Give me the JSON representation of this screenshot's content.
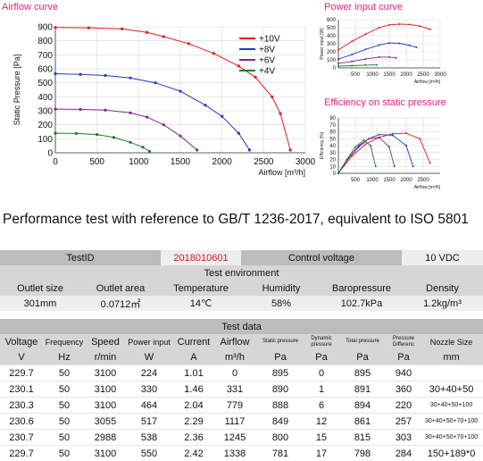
{
  "chart_data": [
    {
      "type": "line",
      "title": "Airflow curve",
      "xlabel": "Airflow [m³/h]",
      "ylabel": "Static Pressure [Pa]",
      "xlim": [
        0,
        3000
      ],
      "ylim": [
        0,
        900
      ],
      "xticks": [
        0,
        500,
        1000,
        1500,
        2000,
        2500,
        3000
      ],
      "yticks": [
        0,
        100,
        200,
        300,
        400,
        500,
        600,
        700,
        800,
        900
      ],
      "legend_position": "top-right",
      "series": [
        {
          "name": "+10V",
          "color": "#e8191f",
          "x": [
            0,
            400,
            800,
            1100,
            1300,
            1600,
            1900,
            2200,
            2400,
            2600,
            2700,
            2820
          ],
          "y": [
            895,
            893,
            885,
            860,
            830,
            780,
            710,
            620,
            540,
            400,
            280,
            20
          ]
        },
        {
          "name": "+8V",
          "color": "#2437c8",
          "x": [
            0,
            300,
            600,
            900,
            1200,
            1500,
            1800,
            2000,
            2200,
            2330
          ],
          "y": [
            565,
            560,
            552,
            535,
            500,
            440,
            340,
            260,
            140,
            20
          ]
        },
        {
          "name": "+6V",
          "color": "#7d2a88",
          "x": [
            0,
            300,
            600,
            900,
            1100,
            1300,
            1500,
            1700
          ],
          "y": [
            312,
            310,
            305,
            285,
            255,
            200,
            120,
            20
          ]
        },
        {
          "name": "+4V",
          "color": "#1d7a2a",
          "x": [
            0,
            250,
            500,
            700,
            900,
            1050,
            1130
          ],
          "y": [
            140,
            138,
            130,
            110,
            75,
            40,
            10
          ]
        }
      ]
    },
    {
      "type": "line",
      "title": "Power input curve",
      "xlabel": "Airflow [m³/h]",
      "ylabel": "Power input [W]",
      "xlim": [
        0,
        3000
      ],
      "ylim": [
        0,
        600
      ],
      "xticks": [
        500,
        1000,
        1500,
        2000,
        2500,
        3000
      ],
      "yticks": [
        0,
        100,
        200,
        300,
        400,
        500,
        600
      ],
      "series": [
        {
          "name": "+10V",
          "color": "#e8191f",
          "x": [
            0,
            400,
            800,
            1200,
            1500,
            1800,
            2100,
            2400,
            2700
          ],
          "y": [
            225,
            330,
            420,
            500,
            535,
            545,
            540,
            520,
            480
          ]
        },
        {
          "name": "+8V",
          "color": "#2437c8",
          "x": [
            0,
            400,
            800,
            1200,
            1500,
            1800,
            2100,
            2300
          ],
          "y": [
            110,
            165,
            230,
            285,
            310,
            305,
            280,
            255
          ]
        },
        {
          "name": "+6V",
          "color": "#7d2a88",
          "x": [
            0,
            400,
            800,
            1200,
            1500,
            1700
          ],
          "y": [
            55,
            80,
            110,
            135,
            135,
            125
          ]
        },
        {
          "name": "+4V",
          "color": "#1d7a2a",
          "x": [
            0,
            400,
            800,
            1130
          ],
          "y": [
            20,
            28,
            35,
            38
          ]
        }
      ]
    },
    {
      "type": "line",
      "title": "Efficiency on static pressure",
      "xlabel": "Airflow [m³/h]",
      "ylabel": "Efficiency [%]",
      "xlim": [
        0,
        3000
      ],
      "ylim": [
        0,
        80
      ],
      "xticks": [
        500,
        1000,
        1500,
        2000,
        2500
      ],
      "yticks": [
        0,
        10,
        20,
        30,
        40,
        50,
        60,
        70,
        80
      ],
      "series": [
        {
          "name": "+10V",
          "color": "#e8191f",
          "x": [
            0,
            400,
            800,
            1200,
            1600,
            2000,
            2400,
            2700
          ],
          "y": [
            0,
            25,
            42,
            52,
            57,
            58,
            50,
            15
          ]
        },
        {
          "name": "+8V",
          "color": "#2437c8",
          "x": [
            0,
            300,
            600,
            900,
            1200,
            1600,
            2000,
            2200
          ],
          "y": [
            0,
            22,
            38,
            50,
            56,
            55,
            40,
            10
          ]
        },
        {
          "name": "+6V",
          "color": "#7d2a88",
          "x": [
            0,
            300,
            600,
            900,
            1200,
            1500,
            1650
          ],
          "y": [
            0,
            22,
            40,
            50,
            52,
            38,
            10
          ]
        },
        {
          "name": "+4V",
          "color": "#1d7a2a",
          "x": [
            0,
            250,
            500,
            750,
            950,
            1100
          ],
          "y": [
            0,
            20,
            38,
            48,
            40,
            10
          ]
        }
      ]
    }
  ],
  "heading": "Performance test with reference to GB/T 1236-2017, equivalent to ISO 5801",
  "test": {
    "test_id_label": "TestID",
    "test_id_value": "2018010601",
    "control_voltage_label": "Control voltage",
    "control_voltage_value": "10 VDC",
    "env_title": "Test environment",
    "env_headers": [
      "Outlet size",
      "Outlet area",
      "Temperature",
      "Humidity",
      "Baropressure",
      "Density"
    ],
    "env_values": [
      "301mm",
      "0.0712㎡",
      "14℃",
      "58%",
      "102.7kPa",
      "1.2kg/m³"
    ]
  },
  "data": {
    "title": "Test data",
    "headers": [
      "Voltage",
      "Frequency",
      "Speed",
      "Power input",
      "Current",
      "Airflow",
      "Static pressure",
      "Dynamic pressure",
      "Total pressure",
      "Pressure Differenc",
      "Nozzle Size"
    ],
    "units": [
      "V",
      "Hz",
      "r/min",
      "W",
      "A",
      "m³/h",
      "Pa",
      "Pa",
      "Pa",
      "Pa",
      "mm"
    ],
    "rows": [
      [
        "229.7",
        "50",
        "3100",
        "224",
        "1.01",
        "0",
        "895",
        "0",
        "895",
        "940",
        ""
      ],
      [
        "230.1",
        "50",
        "3100",
        "330",
        "1.46",
        "331",
        "890",
        "1",
        "891",
        "360",
        "30+40+50"
      ],
      [
        "230.3",
        "50",
        "3100",
        "464",
        "2.04",
        "779",
        "888",
        "6",
        "894",
        "220",
        "30+40+50+100"
      ],
      [
        "230.6",
        "50",
        "3055",
        "517",
        "2.29",
        "1117",
        "849",
        "12",
        "861",
        "257",
        "30+40+50+70+100"
      ],
      [
        "230.7",
        "50",
        "2988",
        "538",
        "2.36",
        "1245",
        "800",
        "15",
        "815",
        "303",
        "30+40+50+70+100"
      ],
      [
        "229.7",
        "50",
        "3100",
        "550",
        "2.42",
        "1338",
        "781",
        "17",
        "798",
        "284",
        "150+189*0"
      ]
    ]
  }
}
